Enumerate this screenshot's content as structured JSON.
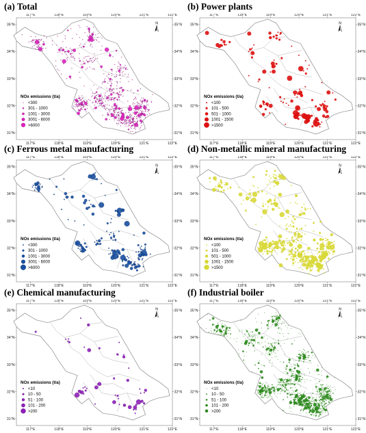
{
  "figure": {
    "x_ticks": [
      "117°E",
      "118°E",
      "119°E",
      "120°E",
      "121°E",
      "122°E"
    ],
    "y_ticks": [
      "35°N",
      "34°N",
      "33°N",
      "32°N",
      "31°N"
    ],
    "north_label": "N",
    "legend_title": "NOx emissions (t/a)"
  },
  "panels": [
    {
      "title": "(a) Total",
      "color": "#e020c0",
      "legend_items": [
        "<300",
        "301 - 1000",
        "1001 - 3000",
        "3001 - 6000",
        ">6000"
      ]
    },
    {
      "title": "(b) Power plants",
      "color": "#dd1111",
      "legend_items": [
        "<100",
        "101 - 500",
        "501 - 1000",
        "1001 - 1500",
        ">1500"
      ]
    },
    {
      "title": "(c) Ferrous metal manufacturing",
      "color": "#1a4fa0",
      "legend_items": [
        "<300",
        "301 - 1000",
        "1001 - 3000",
        "3001 - 6000",
        ">6000"
      ]
    },
    {
      "title": "(d) Non-metallic mineral manufacturing",
      "color": "#d8d838",
      "legend_items": [
        "<100",
        "101 - 500",
        "501 - 1000",
        "1001 - 1500",
        ">1500"
      ]
    },
    {
      "title": "(e) Chemical manufacturing",
      "color": "#8e1fb8",
      "legend_items": [
        "<10",
        "10 - 50",
        "51 - 100",
        "101 - 200",
        ">200"
      ]
    },
    {
      "title": "(f) Industrial boiler",
      "color": "#2e8a1e",
      "legend_items": [
        "<10",
        "10 - 50",
        "51 - 100",
        "101 - 200",
        ">200"
      ]
    }
  ]
}
